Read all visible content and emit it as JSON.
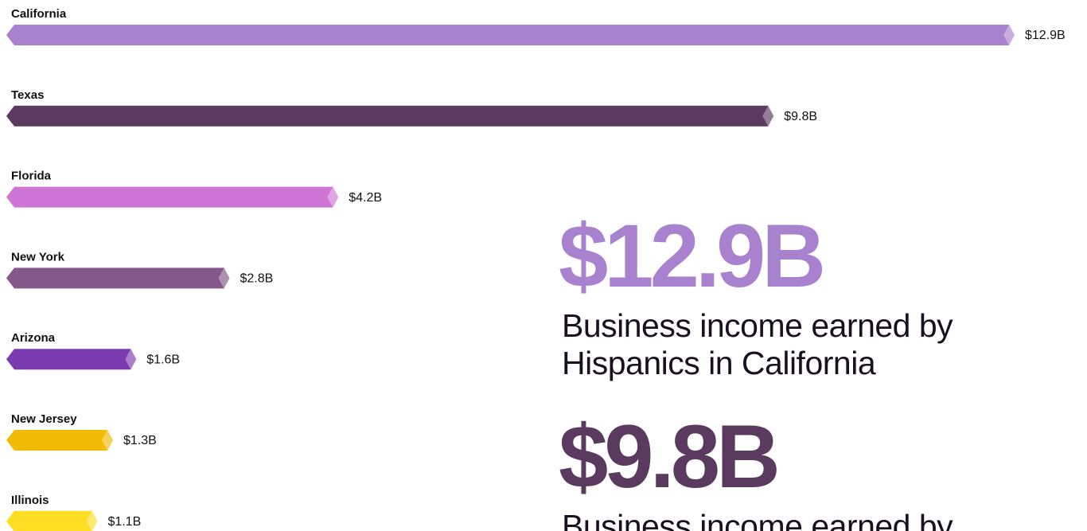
{
  "chart_data": {
    "type": "bar",
    "orientation": "horizontal",
    "categories": [
      "California",
      "Texas",
      "Florida",
      "New York",
      "Arizona",
      "New Jersey",
      "Illinois"
    ],
    "values": [
      12.9,
      9.8,
      4.2,
      2.8,
      1.6,
      1.3,
      1.1
    ],
    "value_labels": [
      "$12.9B",
      "$9.8B",
      "$4.2B",
      "$2.8B",
      "$1.6B",
      "$1.3B",
      "$1.1B"
    ],
    "colors": [
      "#a982cf",
      "#5a3a5e",
      "#cf75d6",
      "#845889",
      "#7b3bb0",
      "#f2bb05",
      "#ffdd22"
    ],
    "callouts": [
      {
        "value": "$12.9B",
        "color": "#a982cf",
        "text": [
          "Business income earned by",
          "Hispanics in California"
        ]
      },
      {
        "value": "$9.8B",
        "color": "#5a3a5e",
        "text": [
          "Business income earned by"
        ]
      }
    ]
  }
}
